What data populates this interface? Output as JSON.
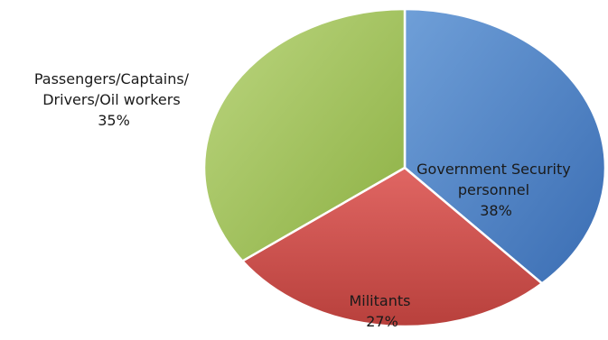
{
  "chart_data": {
    "type": "pie",
    "title": "",
    "slices": [
      {
        "label_lines": [
          "Government Security",
          "personnel"
        ],
        "percent_label": "38%",
        "value": 38,
        "color": "#4f81bd"
      },
      {
        "label_lines": [
          "Militants"
        ],
        "percent_label": "27%",
        "value": 27,
        "color": "#c0504d"
      },
      {
        "label_lines": [
          "Passengers/Captains/",
          "Drivers/Oil workers"
        ],
        "percent_label": "35%",
        "value": 35,
        "color": "#9bbb59"
      }
    ],
    "start_angle_deg": 0,
    "direction": "clockwise",
    "legend": "none",
    "data_labels": "category-and-percent"
  }
}
